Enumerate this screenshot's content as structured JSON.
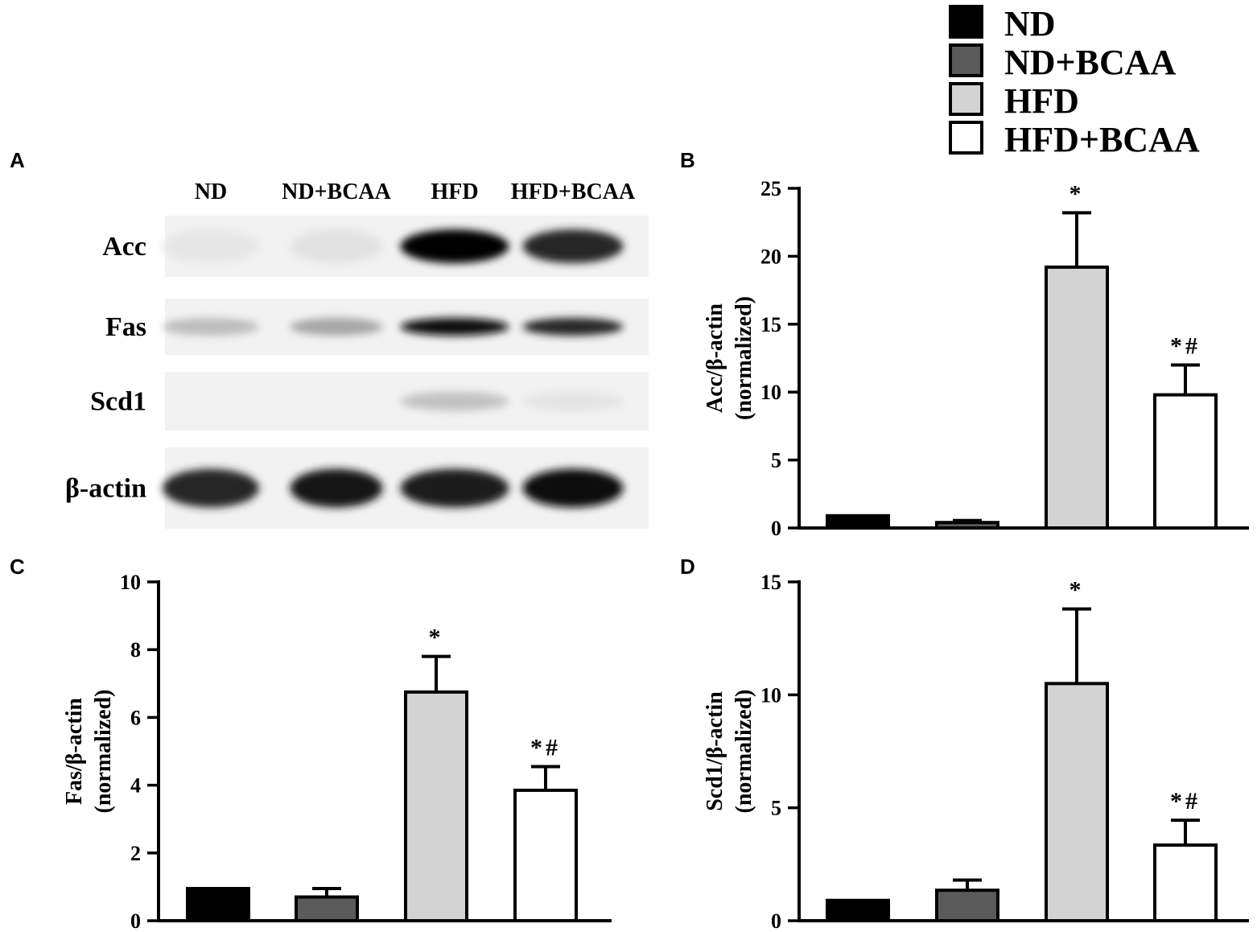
{
  "legend": {
    "items": [
      {
        "label": "ND",
        "color": "#000000"
      },
      {
        "label": "ND+BCAA",
        "color": "#5a5a5a"
      },
      {
        "label": "HFD",
        "color": "#d3d3d3"
      },
      {
        "label": "HFD+BCAA",
        "color": "#ffffff"
      }
    ]
  },
  "blot": {
    "panel_label": "A",
    "lanes": [
      "ND",
      "ND+BCAA",
      "HFD",
      "HFD+BCAA"
    ],
    "rows": [
      {
        "label": "Acc",
        "intensity": [
          0.02,
          0.04,
          1.0,
          0.85
        ]
      },
      {
        "label": "Fas",
        "intensity": [
          0.2,
          0.3,
          0.95,
          0.85
        ]
      },
      {
        "label": "Scd1",
        "intensity": [
          0.0,
          0.0,
          0.18,
          0.03
        ]
      },
      {
        "label": "β-actin",
        "intensity": [
          0.85,
          0.92,
          0.9,
          0.95
        ]
      }
    ]
  },
  "chart_data": [
    {
      "panel_label": "B",
      "type": "bar",
      "categories": [
        "ND",
        "ND+BCAA",
        "HFD",
        "HFD+BCAA"
      ],
      "values": [
        0.9,
        0.4,
        19.2,
        9.8
      ],
      "errors": [
        0,
        0.15,
        4.0,
        2.2
      ],
      "annotations": [
        "",
        "",
        "*",
        "*#"
      ],
      "ylabel_line1": "Acc/β-actin",
      "ylabel_line2": "(normalized)",
      "ylim": [
        0,
        25
      ],
      "yticks": [
        0,
        5,
        10,
        15,
        20,
        25
      ]
    },
    {
      "panel_label": "C",
      "type": "bar",
      "categories": [
        "ND",
        "ND+BCAA",
        "HFD",
        "HFD+BCAA"
      ],
      "values": [
        0.95,
        0.7,
        6.75,
        3.85
      ],
      "errors": [
        0,
        0.25,
        1.05,
        0.7
      ],
      "annotations": [
        "",
        "",
        "*",
        "*#"
      ],
      "ylabel_line1": "Fas/β-actin",
      "ylabel_line2": "(normalized)",
      "ylim": [
        0,
        10
      ],
      "yticks": [
        0,
        2,
        4,
        6,
        8,
        10
      ]
    },
    {
      "panel_label": "D",
      "type": "bar",
      "categories": [
        "ND",
        "ND+BCAA",
        "HFD",
        "HFD+BCAA"
      ],
      "values": [
        0.9,
        1.35,
        10.5,
        3.35
      ],
      "errors": [
        0,
        0.45,
        3.3,
        1.1
      ],
      "annotations": [
        "",
        "",
        "*",
        "*#"
      ],
      "ylabel_line1": "Scd1/β-actin",
      "ylabel_line2": "(normalized)",
      "ylim": [
        0,
        15
      ],
      "yticks": [
        0,
        5,
        10,
        15
      ]
    }
  ]
}
